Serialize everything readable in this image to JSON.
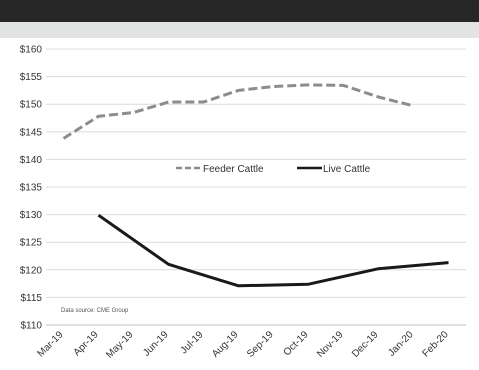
{
  "chart_data": {
    "type": "line",
    "categories": [
      "Mar-19",
      "Apr-19",
      "May-19",
      "Jun-19",
      "Jul-19",
      "Aug-19",
      "Sep-19",
      "Oct-19",
      "Nov-19",
      "Dec-19",
      "Jan-20",
      "Feb-20"
    ],
    "ylim": [
      110,
      160
    ],
    "yticks": [
      110,
      115,
      120,
      125,
      130,
      135,
      140,
      145,
      150,
      155,
      160
    ],
    "ytick_labels": [
      "$110",
      "$115",
      "$120",
      "$125",
      "$130",
      "$135",
      "$140",
      "$145",
      "$150",
      "$155",
      "$160"
    ],
    "grid": true,
    "legend_position": "center",
    "series": [
      {
        "name": "Feeder Cattle",
        "style": "dashed",
        "color": "#8c8c8c",
        "values": [
          143.8,
          147.8,
          148.5,
          150.4,
          150.4,
          152.5,
          153.2,
          153.5,
          153.4,
          151.3,
          149.7,
          null
        ]
      },
      {
        "name": "Live Cattle",
        "style": "solid",
        "color": "#1a1a1a",
        "values": [
          null,
          129.9,
          null,
          121.0,
          null,
          117.1,
          null,
          117.4,
          null,
          120.2,
          null,
          121.3
        ]
      }
    ],
    "annotation": "Data source: CME Group"
  }
}
